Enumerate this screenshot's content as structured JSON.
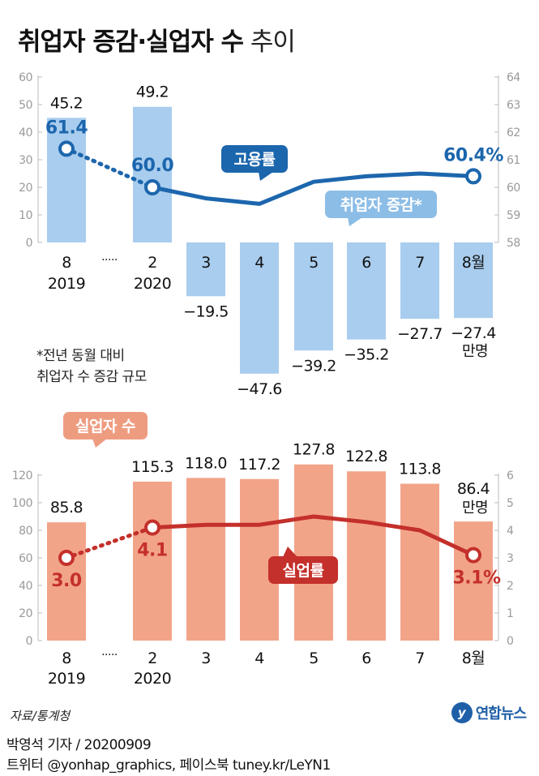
{
  "title": {
    "bold": "취업자 증감·실업자 수",
    "light": "추이"
  },
  "source": "자료/통계청",
  "byline": "박영석 기자 / 20200909",
  "sns": "트위터 @yonhap_graphics, 페이스북 tuney.kr/LeYN1",
  "logo": {
    "mark": "y",
    "text": "연합뉴스"
  },
  "colors": {
    "blue_bar": "#a9cdee",
    "blue_line": "#1c66ad",
    "red_bar": "#f2a489",
    "red_line": "#c4302b",
    "axis_text": "#9a9a9a"
  },
  "chart_data": [
    {
      "type": "bar+line",
      "categories": [
        "8",
        "2",
        "3",
        "4",
        "5",
        "6",
        "7",
        "8월"
      ],
      "year_labels": [
        "2019",
        "2020"
      ],
      "gap_marker": "·····",
      "bar_series": {
        "name": "취업자 증감*",
        "values": [
          45.2,
          49.2,
          -19.5,
          -47.6,
          -39.2,
          -35.2,
          -27.7,
          -27.4
        ],
        "labels": [
          "45.2",
          "49.2",
          "−19.5",
          "−47.6",
          "−39.2",
          "−35.2",
          "−27.7",
          "−27.4"
        ]
      },
      "line_series": {
        "name": "고용률",
        "values": [
          61.4,
          60.0,
          59.6,
          59.4,
          60.2,
          60.4,
          60.5,
          60.4
        ],
        "labels": [
          "61.4",
          "60.0",
          "",
          "",
          "",
          "",
          "",
          "60.4%"
        ]
      },
      "unit": "만명",
      "left_axis": {
        "ticks": [
          "60",
          "50",
          "40",
          "30",
          "20",
          "10",
          "0"
        ],
        "ylim": [
          0,
          60
        ]
      },
      "right_axis": {
        "ticks": [
          "64",
          "63",
          "62",
          "61",
          "60",
          "59",
          "58"
        ],
        "ylim": [
          58,
          64
        ]
      },
      "note": [
        "*전년 동월 대비",
        "취업자 수 증감 규모"
      ]
    },
    {
      "type": "bar+line",
      "categories": [
        "8",
        "2",
        "3",
        "4",
        "5",
        "6",
        "7",
        "8월"
      ],
      "year_labels": [
        "2019",
        "2020"
      ],
      "gap_marker": "·····",
      "bar_series": {
        "name": "실업자 수",
        "values": [
          85.8,
          115.3,
          118.0,
          117.2,
          127.8,
          122.8,
          113.8,
          86.4
        ],
        "labels": [
          "85.8",
          "115.3",
          "118.0",
          "117.2",
          "127.8",
          "122.8",
          "113.8",
          "86.4"
        ]
      },
      "line_series": {
        "name": "실업률",
        "values": [
          3.0,
          4.1,
          4.2,
          4.2,
          4.5,
          4.3,
          4.0,
          3.1
        ],
        "labels": [
          "3.0",
          "4.1",
          "",
          "",
          "",
          "",
          "",
          "3.1%"
        ]
      },
      "unit": "만명",
      "left_axis": {
        "ticks": [
          "120",
          "100",
          "80",
          "60",
          "40",
          "20",
          "0"
        ],
        "ylim": [
          0,
          120
        ]
      },
      "right_axis": {
        "ticks": [
          "6",
          "5",
          "4",
          "3",
          "2",
          "1",
          "0"
        ],
        "ylim": [
          0,
          6
        ]
      }
    }
  ]
}
